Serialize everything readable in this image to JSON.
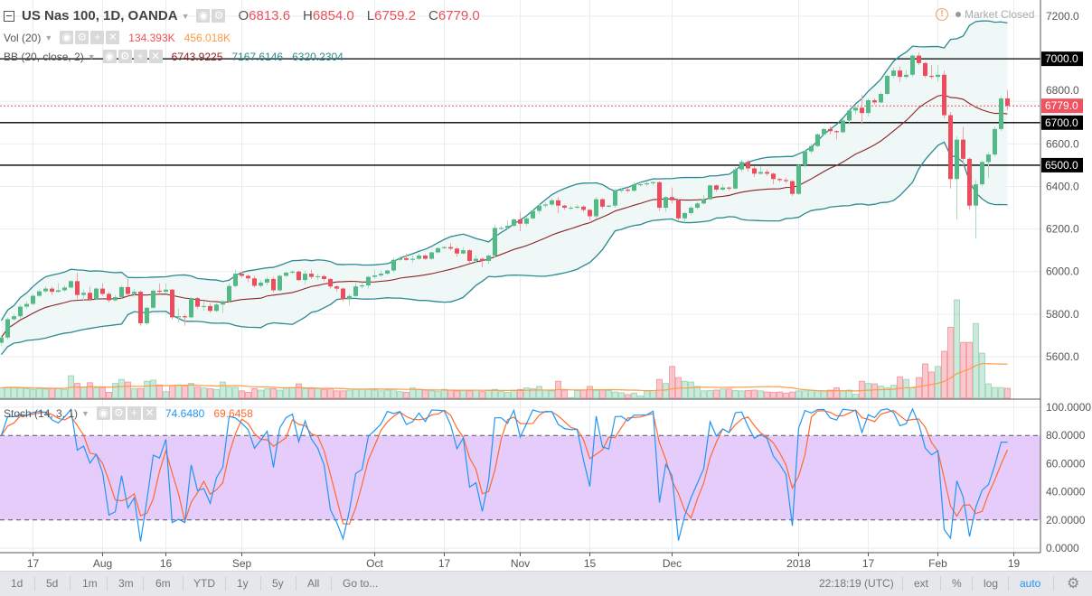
{
  "header": {
    "symbol_title": "US Nas 100, 1D, OANDA",
    "open_label": "O",
    "open_value": "6813.6",
    "high_label": "H",
    "high_value": "6854.0",
    "low_label": "L",
    "low_value": "6759.2",
    "close_label": "C",
    "close_value": "6779.0",
    "market_status": "Market Closed"
  },
  "indicators": {
    "volume": {
      "label": "Vol (20)",
      "value": "134.393K",
      "ma_value": "456.018K"
    },
    "bb": {
      "label": "BB (20, close, 2)",
      "basis": "6743.9225",
      "upper": "7167.6146",
      "lower": "6320.2304"
    },
    "stoch": {
      "label": "Stoch (14, 3, 1)",
      "k": "74.6480",
      "d": "69.6458"
    }
  },
  "toolbar": {
    "ranges": [
      "1d",
      "5d",
      "1m",
      "3m",
      "6m",
      "YTD",
      "1y",
      "5y",
      "All",
      "Go to..."
    ],
    "clock": "22:18:19 (UTC)",
    "ext": "ext",
    "percent": "%",
    "log": "log",
    "auto": "auto"
  },
  "colors": {
    "up": "#53b987",
    "down": "#eb4d5c",
    "bb_band": "#2a8a90",
    "bb_basis": "#8b2323",
    "bb_fill": "#f0f7f7",
    "vol_ma": "#ff9a45",
    "stoch_k": "#2196f3",
    "stoch_d": "#ff6a2c",
    "stoch_zone": "#e6ccfb",
    "accent": "#2196f3"
  },
  "chart_data": {
    "type": "candlestick",
    "title": "US Nas 100, 1D, OANDA",
    "price_axis": {
      "ticks": [
        "7200.0",
        "6800.0",
        "6600.0",
        "6400.0",
        "6200.0",
        "6000.0",
        "5800.0",
        "5600.0"
      ],
      "range": [
        5540,
        7240
      ]
    },
    "horizontal_lines": [
      {
        "value": 7000,
        "label": "7000.0"
      },
      {
        "value": 6700,
        "label": "6700.0"
      },
      {
        "value": 6500,
        "label": "6500.0"
      }
    ],
    "last_price": {
      "value": 6779.0,
      "label": "6779.0"
    },
    "x_ticks": [
      {
        "label": "17",
        "index": 5
      },
      {
        "label": "Aug",
        "index": 16
      },
      {
        "label": "16",
        "index": 26
      },
      {
        "label": "Sep",
        "index": 38
      },
      {
        "label": "Oct",
        "index": 59
      },
      {
        "label": "17",
        "index": 70
      },
      {
        "label": "Nov",
        "index": 82
      },
      {
        "label": "15",
        "index": 93
      },
      {
        "label": "Dec",
        "index": 106
      },
      {
        "label": "2018",
        "index": 126
      },
      {
        "label": "17",
        "index": 137
      },
      {
        "label": "Feb",
        "index": 148
      },
      {
        "label": "19",
        "index": 160
      }
    ],
    "open0": 5665,
    "close": [
      5690,
      5776,
      5790,
      5835,
      5848,
      5886,
      5907,
      5920,
      5905,
      5912,
      5925,
      5955,
      5890,
      5900,
      5870,
      5920,
      5895,
      5865,
      5880,
      5927,
      5895,
      5905,
      5757,
      5830,
      5910,
      5905,
      5915,
      5785,
      5790,
      5785,
      5875,
      5835,
      5838,
      5815,
      5845,
      5860,
      5932,
      5990,
      5980,
      5968,
      5933,
      5948,
      5965,
      5912,
      5980,
      5995,
      6000,
      5960,
      5990,
      5975,
      5978,
      5965,
      5930,
      5920,
      5870,
      5885,
      5930,
      5935,
      5975,
      5982,
      5990,
      6005,
      6055,
      6063,
      6055,
      6060,
      6075,
      6060,
      6090,
      6110,
      6115,
      6108,
      6085,
      6100,
      6050,
      6060,
      6050,
      6075,
      6205,
      6205,
      6215,
      6245,
      6225,
      6250,
      6285,
      6310,
      6315,
      6335,
      6310,
      6300,
      6300,
      6305,
      6290,
      6260,
      6340,
      6305,
      6310,
      6380,
      6385,
      6380,
      6410,
      6410,
      6415,
      6420,
      6300,
      6350,
      6335,
      6250,
      6275,
      6300,
      6320,
      6340,
      6405,
      6385,
      6395,
      6390,
      6480,
      6515,
      6485,
      6460,
      6468,
      6460,
      6435,
      6430,
      6425,
      6365,
      6500,
      6565,
      6590,
      6645,
      6670,
      6660,
      6655,
      6710,
      6757,
      6770,
      6745,
      6805,
      6795,
      6835,
      6920,
      6945,
      6915,
      6925,
      7015,
      6980,
      6920,
      6915,
      6925,
      6735,
      6435,
      6620,
      6530,
      6310,
      6410,
      6515,
      6550,
      6670,
      6813.6,
      6779.0
    ],
    "high": [
      5700,
      5785,
      5800,
      5845,
      5860,
      5895,
      5915,
      5930,
      5930,
      5945,
      5935,
      5960,
      5995,
      5915,
      5930,
      5925,
      5945,
      5905,
      5890,
      5935,
      5965,
      5920,
      5910,
      5835,
      5915,
      5945,
      5945,
      5920,
      5825,
      5800,
      5880,
      5880,
      5860,
      5850,
      5850,
      5865,
      5945,
      6010,
      6000,
      5985,
      5980,
      5960,
      5975,
      5975,
      5985,
      6000,
      6005,
      6005,
      6005,
      6010,
      5990,
      5985,
      5970,
      5935,
      5925,
      5895,
      5950,
      5950,
      5980,
      6010,
      6005,
      6010,
      6065,
      6070,
      6085,
      6075,
      6085,
      6080,
      6095,
      6115,
      6120,
      6135,
      6115,
      6115,
      6105,
      6075,
      6065,
      6080,
      6220,
      6215,
      6240,
      6250,
      6280,
      6260,
      6290,
      6320,
      6325,
      6345,
      6350,
      6315,
      6310,
      6315,
      6310,
      6295,
      6350,
      6345,
      6315,
      6390,
      6395,
      6395,
      6420,
      6420,
      6425,
      6425,
      6425,
      6355,
      6395,
      6340,
      6280,
      6310,
      6330,
      6360,
      6410,
      6410,
      6410,
      6400,
      6490,
      6525,
      6525,
      6495,
      6495,
      6480,
      6465,
      6440,
      6440,
      6430,
      6505,
      6570,
      6600,
      6650,
      6675,
      6685,
      6665,
      6715,
      6765,
      6780,
      6830,
      6815,
      6815,
      6845,
      6925,
      6960,
      6965,
      6950,
      7020,
      7030,
      6985,
      6970,
      6970,
      6945,
      6750,
      6635,
      6680,
      6535,
      6430,
      6520,
      6560,
      6680,
      6825,
      6854.0
    ],
    "low": [
      5650,
      5680,
      5770,
      5780,
      5825,
      5840,
      5880,
      5900,
      5890,
      5900,
      5905,
      5920,
      5870,
      5860,
      5860,
      5865,
      5885,
      5855,
      5860,
      5875,
      5885,
      5880,
      5745,
      5750,
      5825,
      5895,
      5900,
      5775,
      5760,
      5745,
      5780,
      5825,
      5815,
      5805,
      5810,
      5805,
      5855,
      5925,
      5970,
      5950,
      5925,
      5925,
      5935,
      5900,
      5905,
      5975,
      5990,
      5955,
      5940,
      5965,
      5960,
      5955,
      5920,
      5905,
      5860,
      5840,
      5875,
      5920,
      5920,
      5965,
      5975,
      5985,
      5995,
      6050,
      6050,
      6040,
      6055,
      6055,
      6055,
      6085,
      6105,
      6100,
      6070,
      6080,
      6040,
      6040,
      6020,
      6035,
      6065,
      6195,
      6200,
      6210,
      6190,
      6215,
      6245,
      6270,
      6300,
      6305,
      6275,
      6290,
      6290,
      6295,
      6280,
      6240,
      6250,
      6295,
      6300,
      6300,
      6370,
      6370,
      6375,
      6400,
      6400,
      6405,
      6285,
      6280,
      6320,
      6240,
      6230,
      6265,
      6290,
      6315,
      6335,
      6375,
      6380,
      6380,
      6385,
      6470,
      6470,
      6445,
      6455,
      6450,
      6410,
      6420,
      6415,
      6355,
      6360,
      6490,
      6555,
      6585,
      6640,
      6645,
      6620,
      6650,
      6690,
      6740,
      6690,
      6730,
      6785,
      6790,
      6830,
      6910,
      6890,
      6905,
      6915,
      6970,
      6910,
      6905,
      6890,
      6720,
      6390,
      6245,
      6500,
      6290,
      6155,
      6400,
      6440,
      6540,
      6660,
      6759.2
    ],
    "volume_k": [
      140,
      150,
      150,
      140,
      130,
      120,
      130,
      125,
      130,
      130,
      120,
      305,
      200,
      150,
      210,
      140,
      140,
      80,
      200,
      255,
      220,
      130,
      130,
      230,
      245,
      180,
      90,
      170,
      180,
      170,
      200,
      150,
      140,
      130,
      120,
      220,
      150,
      150,
      100,
      80,
      130,
      110,
      130,
      130,
      110,
      140,
      140,
      195,
      130,
      130,
      130,
      120,
      130,
      100,
      100,
      110,
      120,
      120,
      120,
      110,
      100,
      110,
      120,
      90,
      80,
      140,
      120,
      110,
      100,
      90,
      120,
      110,
      100,
      105,
      100,
      110,
      90,
      110,
      120,
      95,
      80,
      110,
      120,
      140,
      130,
      160,
      110,
      100,
      230,
      110,
      10,
      105,
      110,
      160,
      105,
      110,
      105,
      85,
      75,
      50,
      70,
      30,
      100,
      105,
      255,
      200,
      430,
      280,
      230,
      220,
      160,
      100,
      105,
      110,
      125,
      125,
      105,
      100,
      105,
      110,
      100,
      85,
      80,
      85,
      70,
      85,
      100,
      100,
      105,
      100,
      100,
      110,
      140,
      100,
      110,
      55,
      230,
      200,
      195,
      165,
      140,
      175,
      290,
      255,
      140,
      280,
      465,
      355,
      430,
      635,
      960,
      1330,
      755,
      755,
      1010,
      610,
      195,
      145,
      145,
      134.393
    ],
    "volume_ma_length": 20,
    "bb": {
      "length": 20,
      "mult": 2
    },
    "stoch": {
      "length": 14,
      "ticks": [
        "100.0000",
        "80.0000",
        "60.0000",
        "40.0000",
        "20.0000",
        "0.0000"
      ],
      "bands": [
        20,
        80
      ],
      "range": [
        0,
        100
      ]
    }
  }
}
